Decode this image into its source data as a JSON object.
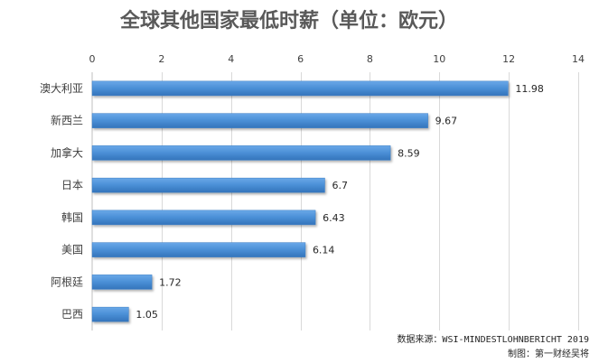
{
  "chart_data": {
    "type": "bar",
    "orientation": "horizontal",
    "title": "全球其他国家最低时薪（单位：欧元）",
    "categories": [
      "澳大利亚",
      "新西兰",
      "加拿大",
      "日本",
      "韩国",
      "美国",
      "阿根廷",
      "巴西"
    ],
    "values": [
      11.98,
      9.67,
      8.59,
      6.7,
      6.43,
      6.14,
      1.72,
      1.05
    ],
    "value_labels": [
      "11.98",
      "9.67",
      "8.59",
      "6.7",
      "6.43",
      "6.14",
      "1.72",
      "1.05"
    ],
    "xlim": [
      0,
      14
    ],
    "xticks": [
      0,
      2,
      4,
      6,
      8,
      10,
      12,
      14
    ],
    "x_axis_position": "top",
    "grid": "vertical",
    "bar_color": "#4a8fd6",
    "xlabel": "",
    "ylabel": ""
  },
  "footer": {
    "source": "数据来源：WSI-MINDESTLOHNBERICHT 2019",
    "credit": "制图：第一财经吴将"
  }
}
